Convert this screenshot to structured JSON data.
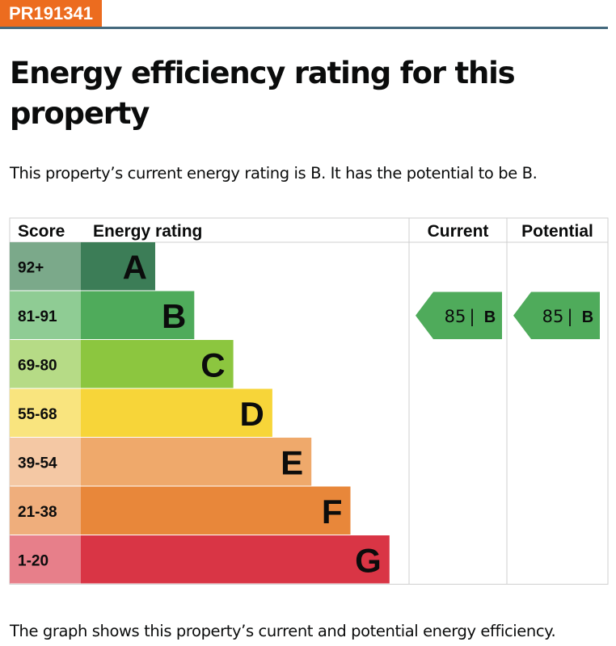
{
  "reference": "PR191341",
  "title": "Energy efficiency rating for this property",
  "summary": "This property’s current energy rating is B. It has the potential to be B.",
  "caption": "The graph shows this property’s current and potential energy efficiency.",
  "colors": {
    "badge": "#ec6c1f",
    "rule": "#44697d",
    "band_A": "#3c7d57",
    "band_B": "#4fab5b",
    "band_C": "#8cc63f",
    "band_D": "#f7d539",
    "band_E": "#efa96b",
    "band_F": "#e8873a",
    "band_G": "#d93545",
    "score_A": "#7ba98a",
    "score_B": "#8fcc94",
    "score_C": "#b6db86",
    "score_D": "#f9e47e",
    "score_E": "#f4c8a4",
    "score_F": "#efae7c",
    "score_G": "#e77f8a"
  },
  "chart_data": {
    "type": "bar",
    "headers": {
      "score": "Score",
      "rating": "Energy rating",
      "current": "Current",
      "potential": "Potential"
    },
    "categories": [
      "A",
      "B",
      "C",
      "D",
      "E",
      "F",
      "G"
    ],
    "score_ranges": [
      "92+",
      "81-91",
      "69-80",
      "55-68",
      "39-54",
      "21-38",
      "1-20"
    ],
    "current": {
      "score": 85,
      "score_label": "85",
      "rating": "B"
    },
    "potential": {
      "score": 85,
      "score_label": "85",
      "rating": "B"
    },
    "separator": "|"
  }
}
